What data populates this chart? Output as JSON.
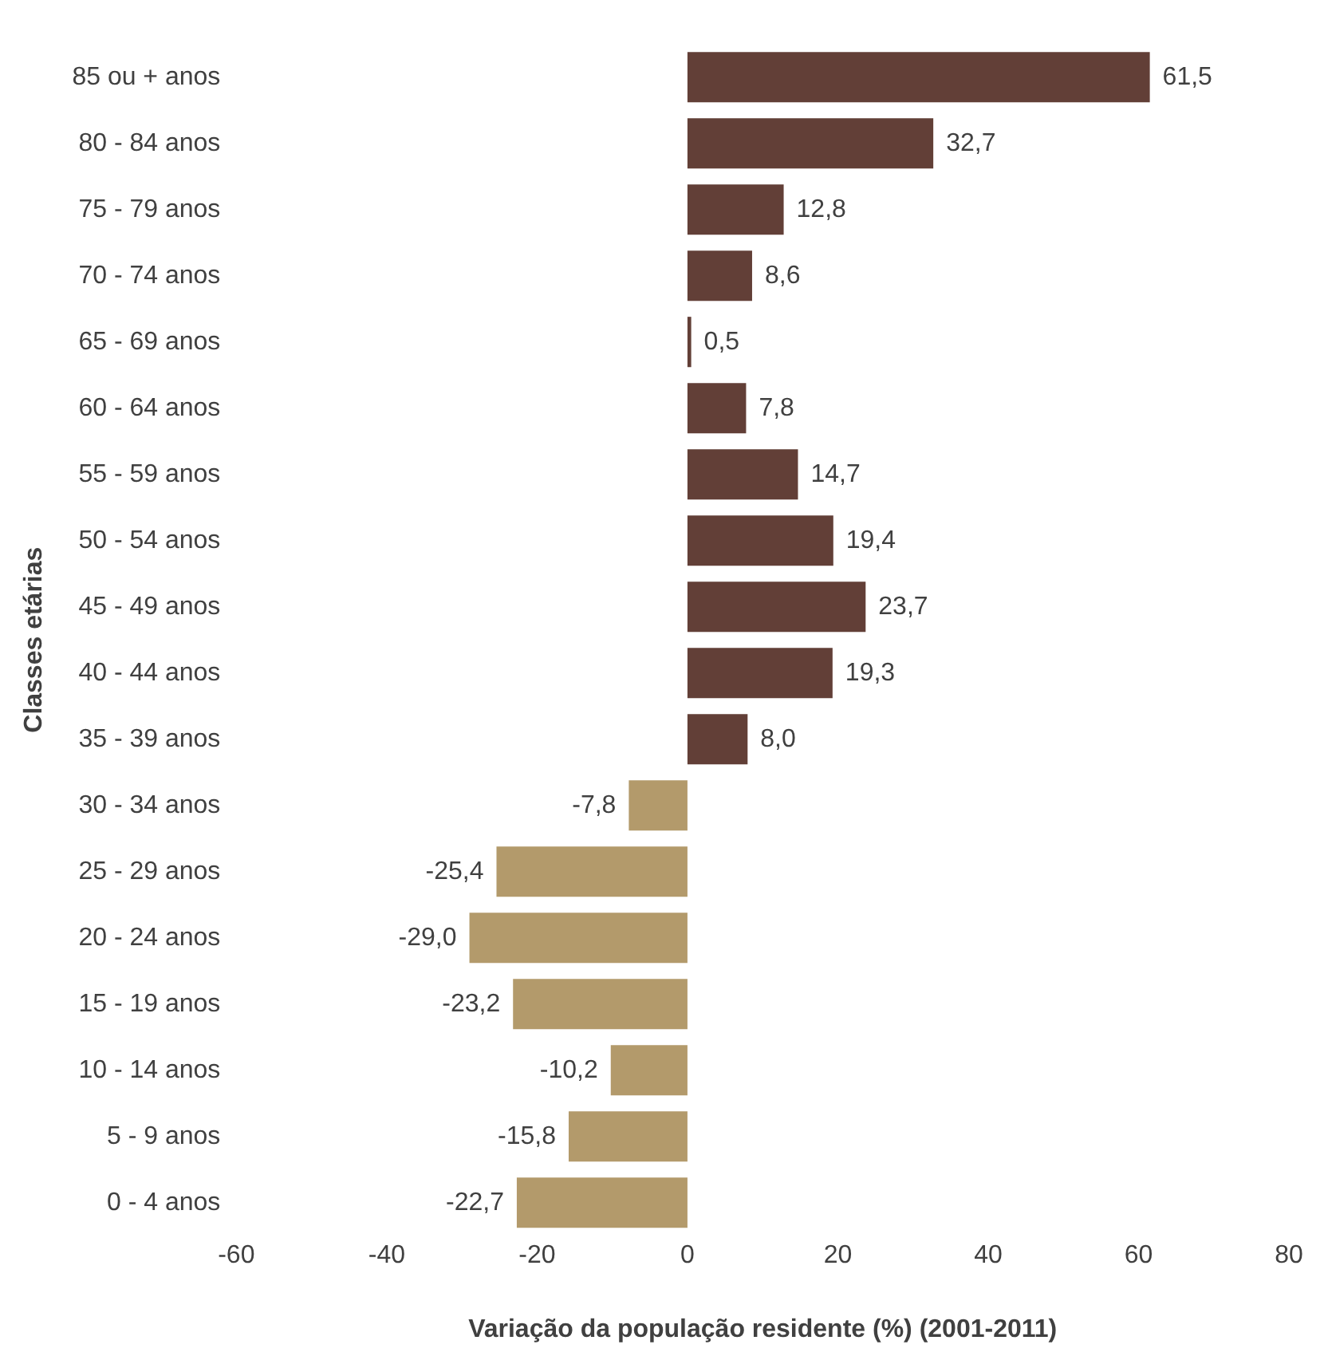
{
  "chart_data": {
    "type": "bar",
    "orientation": "horizontal",
    "xlabel": "Variação da população residente (%) (2001-2011)",
    "ylabel": "Classes etárias",
    "categories": [
      "85 ou + anos",
      "80 - 84 anos",
      "75 - 79 anos",
      "70 - 74 anos",
      "65 - 69 anos",
      "60 - 64 anos",
      "55 - 59 anos",
      "50 - 54 anos",
      "45 - 49 anos",
      "40 - 44 anos",
      "35 - 39 anos",
      "30 - 34 anos",
      "25 - 29 anos",
      "20 - 24 anos",
      "15 - 19 anos",
      "10 - 14 anos",
      "5 - 9 anos",
      "0 - 4 anos"
    ],
    "values": [
      61.5,
      32.7,
      12.8,
      8.6,
      0.5,
      7.8,
      14.7,
      19.4,
      23.7,
      19.3,
      8.0,
      -7.8,
      -25.4,
      -29.0,
      -23.2,
      -10.2,
      -15.8,
      -22.7
    ],
    "value_labels": [
      "61,5",
      "32,7",
      "12,8",
      "8,6",
      "0,5",
      "7,8",
      "14,7",
      "19,4",
      "23,7",
      "19,3",
      "8,0",
      "-7,8",
      "-25,4",
      "-29,0",
      "-23,2",
      "-10,2",
      "-15,8",
      "-22,7"
    ],
    "colors": [
      "#623f37",
      "#623f37",
      "#623f37",
      "#623f37",
      "#623f37",
      "#623f37",
      "#623f37",
      "#623f37",
      "#623f37",
      "#623f37",
      "#623f37",
      "#b39a6b",
      "#b39a6b",
      "#b39a6b",
      "#b39a6b",
      "#b39a6b",
      "#b39a6b",
      "#b39a6b"
    ],
    "xlim": [
      -60,
      80
    ],
    "xticks": [
      -60,
      -40,
      -20,
      0,
      20,
      40,
      60,
      80
    ],
    "grid": false,
    "legend": false
  }
}
